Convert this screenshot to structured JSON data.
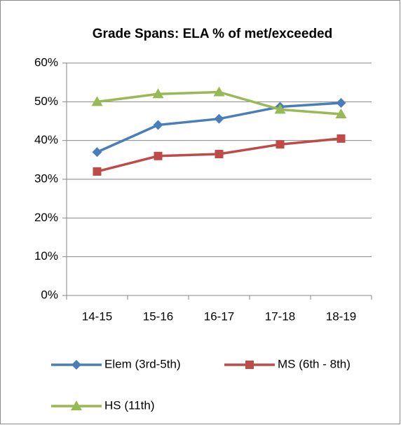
{
  "chart_data": {
    "type": "line",
    "title": "Grade Spans:  ELA % of met/exceeded",
    "categories": [
      "14-15",
      "15-16",
      "16-17",
      "17-18",
      "18-19"
    ],
    "series": [
      {
        "name": "Elem (3rd-5th)",
        "color": "#4a7ebb",
        "marker": "diamond",
        "values": [
          37,
          44,
          45.6,
          48.7,
          49.7
        ]
      },
      {
        "name": "MS (6th - 8th)",
        "color": "#be4b48",
        "marker": "square",
        "values": [
          32,
          36,
          36.5,
          39,
          40.5
        ]
      },
      {
        "name": "HS (11th)",
        "color": "#98b954",
        "marker": "triangle",
        "values": [
          50,
          52,
          52.5,
          48,
          46.8
        ]
      }
    ],
    "ylim": [
      0,
      60
    ],
    "yticks": [
      {
        "value": 0,
        "label": "0%"
      },
      {
        "value": 10,
        "label": "10%"
      },
      {
        "value": 20,
        "label": "20%"
      },
      {
        "value": 30,
        "label": "30%"
      },
      {
        "value": 40,
        "label": "40%"
      },
      {
        "value": 50,
        "label": "50%"
      },
      {
        "value": 60,
        "label": "60%"
      }
    ],
    "grid": true,
    "legend": "bottom"
  }
}
